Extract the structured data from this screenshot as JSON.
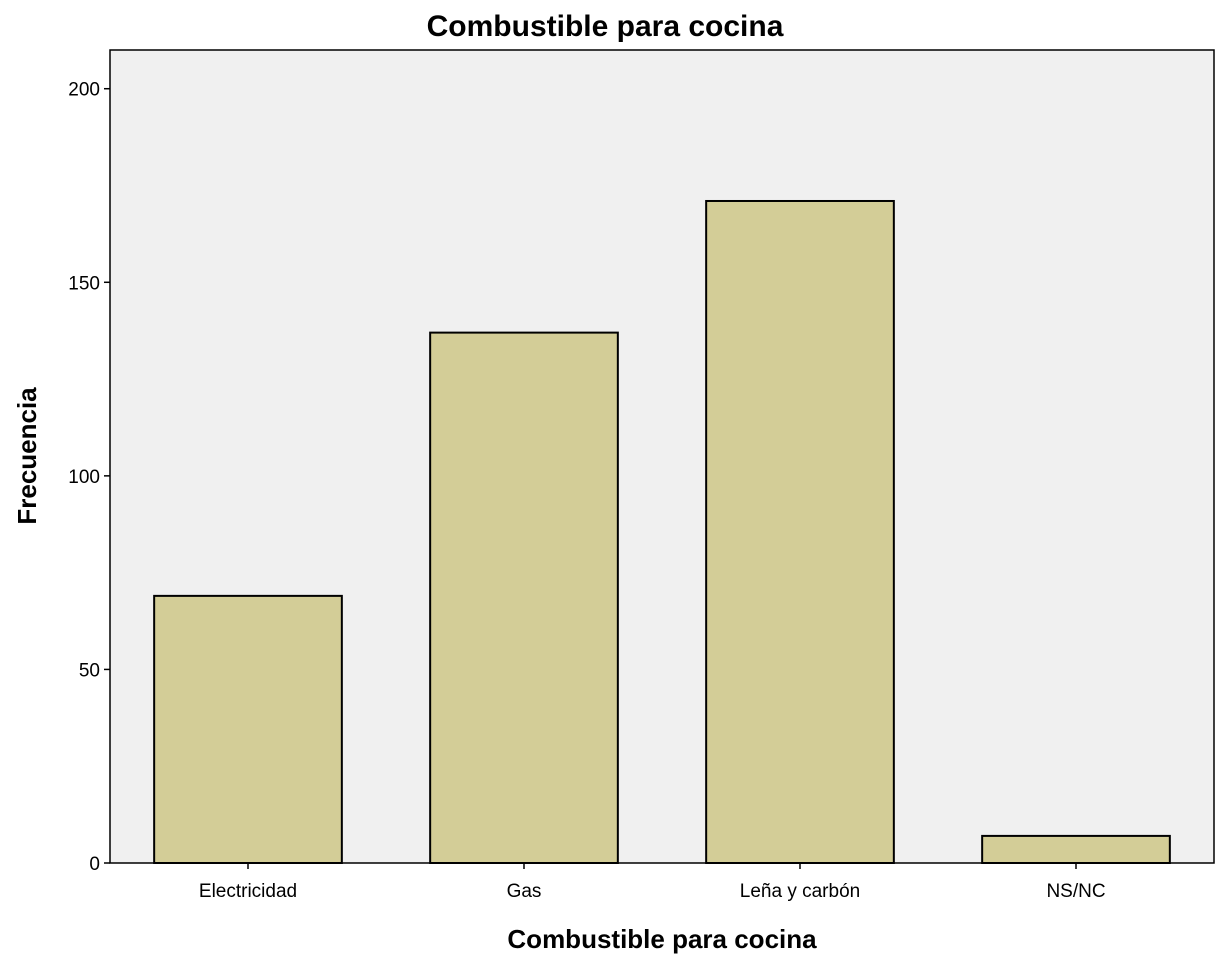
{
  "chart_data": {
    "type": "bar",
    "title": "Combustible para cocina",
    "xlabel": "Combustible para cocina",
    "ylabel": "Frecuencia",
    "categories": [
      "Electricidad",
      "Gas",
      "Leña y carbón",
      "NS/NC"
    ],
    "values": [
      69,
      137,
      171,
      7
    ],
    "ylim": [
      0,
      210
    ],
    "yticks": [
      0,
      50,
      100,
      150,
      200
    ],
    "ytick_labels": [
      "0",
      "50",
      "100",
      "150",
      "200"
    ],
    "grid": false,
    "legend": "none",
    "colors": {
      "bar_fill": "#d3cd97",
      "bar_stroke": "#000000",
      "plot_background": "#f0f0f0",
      "axis": "#000000"
    }
  }
}
